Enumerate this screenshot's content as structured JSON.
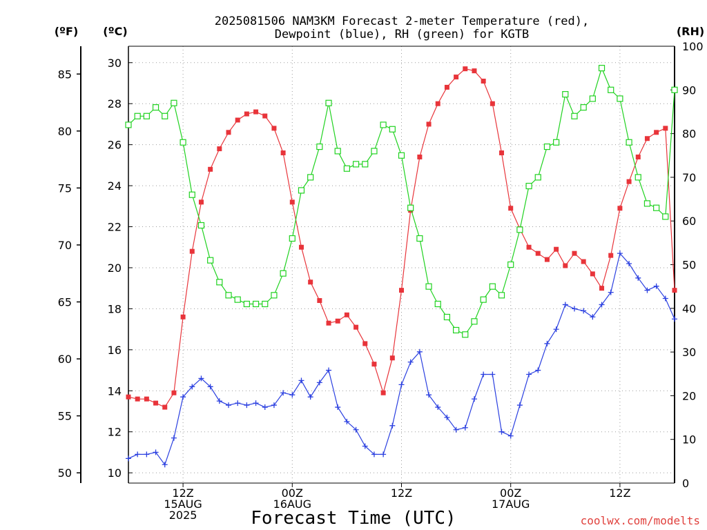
{
  "title": {
    "line1": "2025081506 NAM3KM Forecast 2-meter Temperature (red),",
    "line2": "Dewpoint (blue), RH (green) for KGTB"
  },
  "units": {
    "fahrenheit": "(ºF)",
    "celsius": "(ºC)",
    "rh": "(RH)"
  },
  "xlabel": "Forecast Time (UTC)",
  "credit": "coolwx.com/modelts",
  "colors": {
    "temperature": "#e8343a",
    "dewpoint": "#2a3fe0",
    "rh": "#1fd21f",
    "grid": "#9a9a9a"
  },
  "chart_data": {
    "type": "line",
    "x_unit": "forecast hour from 2025-08-15 06Z",
    "x_range": [
      0,
      60
    ],
    "ylim_c": [
      9.5,
      30.8
    ],
    "ylim_rh": [
      0,
      100
    ],
    "yticks_c": [
      "10",
      "12",
      "14",
      "16",
      "18",
      "20",
      "22",
      "24",
      "26",
      "28",
      "30"
    ],
    "yticks_f": [
      "50",
      "55",
      "60",
      "65",
      "70",
      "75",
      "80",
      "85"
    ],
    "yticks_rh": [
      "0",
      "10",
      "20",
      "30",
      "40",
      "50",
      "60",
      "70",
      "80",
      "90",
      "100"
    ],
    "x_ticks": [
      {
        "hour": 6,
        "lines": [
          "12Z",
          "15AUG",
          "2025"
        ]
      },
      {
        "hour": 18,
        "lines": [
          "00Z",
          "16AUG"
        ]
      },
      {
        "hour": 30,
        "lines": [
          "12Z"
        ]
      },
      {
        "hour": 42,
        "lines": [
          "00Z",
          "17AUG"
        ]
      },
      {
        "hour": 54,
        "lines": [
          "12Z"
        ]
      }
    ],
    "grid": true,
    "series": [
      {
        "name": "Temperature",
        "axis": "celsius",
        "marker": "filled-square",
        "values": [
          13.7,
          13.6,
          13.6,
          13.4,
          13.2,
          13.9,
          17.6,
          20.8,
          23.2,
          24.8,
          25.8,
          26.6,
          27.2,
          27.5,
          27.6,
          27.4,
          26.8,
          25.6,
          23.2,
          21.0,
          19.3,
          18.4,
          17.3,
          17.4,
          17.7,
          17.1,
          16.3,
          15.3,
          13.9,
          15.6,
          18.9,
          22.8,
          25.4,
          27.0,
          28.0,
          28.8,
          29.3,
          29.7,
          29.6,
          29.1,
          28.0,
          25.6,
          22.9,
          21.9,
          21.0,
          20.7,
          20.4,
          20.9,
          20.1,
          20.7,
          20.3,
          19.7,
          19.0,
          20.6,
          22.9,
          24.2,
          25.4,
          26.3,
          26.6,
          26.8,
          18.9
        ]
      },
      {
        "name": "Dewpoint",
        "axis": "celsius",
        "marker": "plus",
        "values": [
          10.7,
          10.9,
          10.9,
          11.0,
          10.4,
          11.7,
          13.7,
          14.2,
          14.6,
          14.2,
          13.5,
          13.3,
          13.4,
          13.3,
          13.4,
          13.2,
          13.3,
          13.9,
          13.8,
          14.5,
          13.7,
          14.4,
          15.0,
          13.2,
          12.5,
          12.1,
          11.3,
          10.9,
          10.9,
          12.3,
          14.3,
          15.4,
          15.9,
          13.8,
          13.2,
          12.7,
          12.1,
          12.2,
          13.6,
          14.8,
          14.8,
          12.0,
          11.8,
          13.3,
          14.8,
          15.0,
          16.3,
          17.0,
          18.2,
          18.0,
          17.9,
          17.6,
          18.2,
          18.8,
          20.7,
          20.2,
          19.5,
          18.9,
          19.1,
          18.5,
          17.5
        ]
      },
      {
        "name": "RH",
        "axis": "rh",
        "marker": "open-square",
        "values": [
          82,
          84,
          84,
          86,
          84,
          87,
          78,
          66,
          59,
          51,
          46,
          43,
          42,
          41,
          41,
          41,
          43,
          48,
          56,
          67,
          70,
          77,
          87,
          76,
          72,
          73,
          73,
          76,
          82,
          81,
          75,
          63,
          56,
          45,
          41,
          38,
          35,
          34,
          37,
          42,
          45,
          43,
          50,
          58,
          68,
          70,
          77,
          78,
          89,
          84,
          86,
          88,
          95,
          90,
          88,
          78,
          70,
          64,
          63,
          61,
          90
        ]
      }
    ]
  }
}
